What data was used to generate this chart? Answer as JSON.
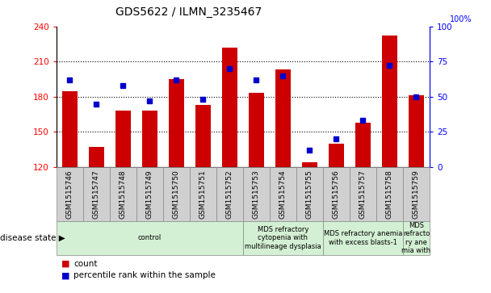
{
  "title": "GDS5622 / ILMN_3235467",
  "samples": [
    "GSM1515746",
    "GSM1515747",
    "GSM1515748",
    "GSM1515749",
    "GSM1515750",
    "GSM1515751",
    "GSM1515752",
    "GSM1515753",
    "GSM1515754",
    "GSM1515755",
    "GSM1515756",
    "GSM1515757",
    "GSM1515758",
    "GSM1515759"
  ],
  "counts": [
    185,
    137,
    168,
    168,
    195,
    173,
    222,
    183,
    203,
    124,
    140,
    158,
    232,
    181
  ],
  "percentiles": [
    62,
    45,
    58,
    47,
    62,
    48,
    70,
    62,
    65,
    12,
    20,
    33,
    72,
    50
  ],
  "ylim_left": [
    120,
    240
  ],
  "ylim_right": [
    0,
    100
  ],
  "yticks_left": [
    120,
    150,
    180,
    210,
    240
  ],
  "yticks_right": [
    0,
    25,
    50,
    75,
    100
  ],
  "bar_color": "#cc0000",
  "dot_color": "#0000cc",
  "disease_groups": [
    {
      "label": "control",
      "start": 0,
      "end": 7,
      "color": "#d4f0d4"
    },
    {
      "label": "MDS refractory\ncytopenia with\nmultilineage dysplasia",
      "start": 7,
      "end": 10,
      "color": "#d4f0d4"
    },
    {
      "label": "MDS refractory anemia\nwith excess blasts-1",
      "start": 10,
      "end": 13,
      "color": "#d4f0d4"
    },
    {
      "label": "MDS\nrefracto\nry ane\nmia with",
      "start": 13,
      "end": 14,
      "color": "#d4f0d4"
    }
  ],
  "legend_count_label": "count",
  "legend_pct_label": "percentile rank within the sample",
  "disease_state_label": "disease state"
}
